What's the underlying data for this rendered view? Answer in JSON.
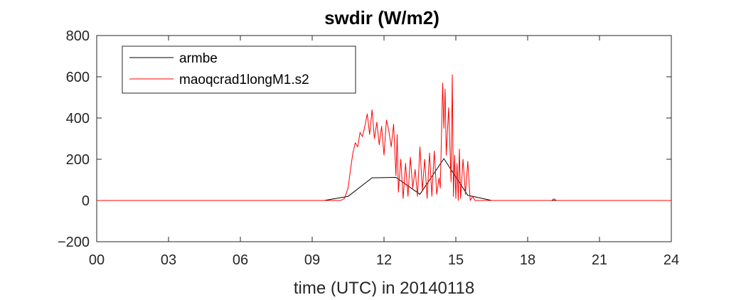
{
  "chart_data": {
    "type": "line",
    "title": "swdir  (W/m2)",
    "xlabel": "time (UTC) in 20140118",
    "ylabel": "",
    "xlim": [
      0,
      24
    ],
    "ylim": [
      -200,
      800
    ],
    "xticks": [
      0,
      3,
      6,
      9,
      12,
      15,
      18,
      21,
      24
    ],
    "xtick_labels": [
      "00",
      "03",
      "06",
      "09",
      "12",
      "15",
      "18",
      "21",
      "24"
    ],
    "yticks": [
      -200,
      0,
      200,
      400,
      600,
      800
    ],
    "ytick_labels": [
      "−200",
      "0",
      "200",
      "400",
      "600",
      "800"
    ],
    "grid": false,
    "legend_position": "top-left",
    "series": [
      {
        "name": "armbe",
        "color": "#000000",
        "x": [
          0,
          9.5,
          10.5,
          11.5,
          12.5,
          13.5,
          14.5,
          15.5,
          16.5,
          24
        ],
        "y": [
          0,
          0,
          20,
          110,
          112,
          30,
          203,
          25,
          0,
          0
        ]
      },
      {
        "name": "maoqcrad1longM1.s2",
        "color": "#ff0000",
        "x": [
          0,
          10.2,
          10.35,
          10.5,
          10.6,
          10.7,
          10.8,
          10.9,
          11.0,
          11.1,
          11.2,
          11.3,
          11.4,
          11.5,
          11.6,
          11.7,
          11.8,
          11.9,
          12.0,
          12.1,
          12.2,
          12.3,
          12.4,
          12.5,
          12.55,
          12.6,
          12.7,
          12.8,
          12.9,
          13.0,
          13.1,
          13.2,
          13.3,
          13.4,
          13.5,
          13.6,
          13.7,
          13.8,
          13.9,
          14.0,
          14.1,
          14.2,
          14.3,
          14.35,
          14.45,
          14.5,
          14.55,
          14.6,
          14.7,
          14.8,
          14.85,
          14.9,
          14.95,
          15.0,
          15.05,
          15.1,
          15.15,
          15.2,
          15.3,
          15.4,
          15.5,
          15.6,
          15.7,
          15.8,
          16.0,
          19.0,
          19.1,
          19.2,
          19.5,
          20.0,
          24
        ],
        "y": [
          0,
          0,
          10,
          60,
          150,
          230,
          280,
          260,
          330,
          310,
          360,
          420,
          320,
          440,
          300,
          380,
          270,
          360,
          220,
          390,
          340,
          260,
          370,
          120,
          320,
          40,
          200,
          10,
          180,
          20,
          210,
          60,
          150,
          20,
          260,
          50,
          200,
          10,
          230,
          20,
          240,
          30,
          110,
          60,
          570,
          350,
          540,
          220,
          450,
          90,
          610,
          20,
          220,
          10,
          180,
          0,
          250,
          10,
          200,
          30,
          190,
          0,
          20,
          0,
          0,
          0,
          8,
          0,
          0,
          0,
          0
        ]
      }
    ]
  }
}
